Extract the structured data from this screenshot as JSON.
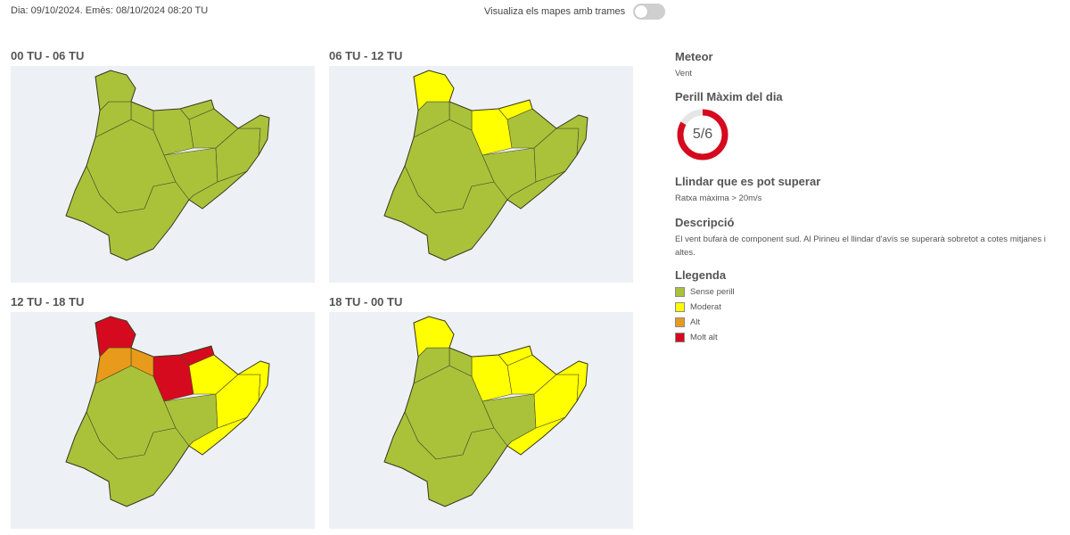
{
  "header": {
    "date_text": "Dia: 09/10/2024. Emès: 08/10/2024 08:20 TU",
    "toggle_label": "Visualiza els mapes amb trames"
  },
  "colors": {
    "sense_perill": "#a9c23a",
    "moderat": "#ffff00",
    "alt": "#e89b1a",
    "molt_alt": "#d50a1e",
    "map_background": "#edf1f5"
  },
  "maps": [
    {
      "title": "00 TU - 06 TU",
      "levels": {
        "aran": "sense_perill",
        "pallars": "sense_perill",
        "alt_urgell": "sense_perill",
        "cerdanya": "sense_perill",
        "ripolles": "sense_perill",
        "garrotxa": "sense_perill",
        "emporda": "sense_perill",
        "central": "sense_perill",
        "girona_inland": "sense_perill",
        "coast_bcn": "sense_perill",
        "ponent": "sense_perill",
        "south": "sense_perill"
      }
    },
    {
      "title": "06 TU - 12 TU",
      "levels": {
        "aran": "moderat",
        "pallars": "sense_perill",
        "alt_urgell": "sense_perill",
        "cerdanya": "moderat",
        "ripolles": "moderat",
        "garrotxa": "sense_perill",
        "emporda": "sense_perill",
        "central": "sense_perill",
        "girona_inland": "sense_perill",
        "coast_bcn": "sense_perill",
        "ponent": "sense_perill",
        "south": "sense_perill"
      }
    },
    {
      "title": "12 TU - 18 TU",
      "levels": {
        "aran": "molt_alt",
        "pallars": "alt",
        "alt_urgell": "alt",
        "cerdanya": "molt_alt",
        "ripolles": "molt_alt",
        "garrotxa": "moderat",
        "emporda": "moderat",
        "central": "sense_perill",
        "girona_inland": "moderat",
        "coast_bcn": "moderat",
        "ponent": "sense_perill",
        "south": "sense_perill"
      }
    },
    {
      "title": "18 TU - 00 TU",
      "levels": {
        "aran": "moderat",
        "pallars": "sense_perill",
        "alt_urgell": "sense_perill",
        "cerdanya": "moderat",
        "ripolles": "moderat",
        "garrotxa": "moderat",
        "emporda": "moderat",
        "central": "sense_perill",
        "girona_inland": "moderat",
        "coast_bcn": "moderat",
        "ponent": "sense_perill",
        "south": "sense_perill"
      }
    }
  ],
  "info": {
    "meteor_heading": "Meteor",
    "meteor_value": "Vent",
    "max_danger_heading": "Perill Màxim del dia",
    "max_danger_value": "5/6",
    "max_danger_level": 5,
    "max_danger_scale": 6,
    "max_danger_color": "#d50a1e",
    "threshold_heading": "Llindar que es pot superar",
    "threshold_value": "Ratxa màxima > 20m/s",
    "description_heading": "Descripció",
    "description_text": "El vent bufarà de component sud. Al Pirineu el llindar d'avís se superarà sobretot a cotes mitjanes i altes.",
    "legend_heading": "Llegenda",
    "legend": [
      {
        "label": "Sense perill",
        "color": "#a9c23a"
      },
      {
        "label": "Moderat",
        "color": "#ffff00"
      },
      {
        "label": "Alt",
        "color": "#e89b1a"
      },
      {
        "label": "Molt alt",
        "color": "#d50a1e"
      }
    ]
  }
}
